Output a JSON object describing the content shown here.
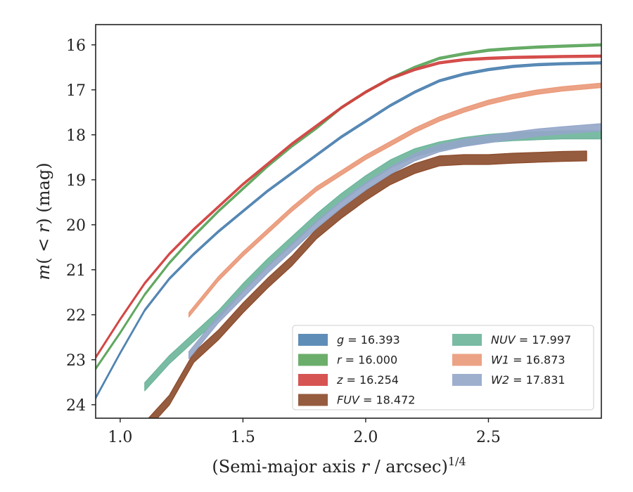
{
  "chart_data": {
    "type": "line",
    "title": "",
    "xlabel": "(Semi-major axis r / arcsec)^1/4",
    "ylabel": "m(< r) (mag)",
    "xlim": [
      0.9,
      2.96
    ],
    "ylim": [
      24.3,
      15.55
    ],
    "y_inverted": true,
    "grid": false,
    "legend_position": "lower-right",
    "xticks": [
      "1.0",
      "1.5",
      "2.0",
      "2.5"
    ],
    "yticks": [
      "16",
      "17",
      "18",
      "19",
      "20",
      "21",
      "22",
      "23",
      "24"
    ],
    "series": [
      {
        "name": "g = 16.393",
        "color": "#4c81b0",
        "band_width": 0.05,
        "x": [
          0.9,
          1.0,
          1.1,
          1.2,
          1.3,
          1.4,
          1.5,
          1.6,
          1.7,
          1.8,
          1.9,
          2.0,
          2.1,
          2.2,
          2.3,
          2.4,
          2.5,
          2.6,
          2.7,
          2.8,
          2.96
        ],
        "y": [
          23.85,
          22.85,
          21.9,
          21.2,
          20.65,
          20.15,
          19.7,
          19.25,
          18.85,
          18.45,
          18.05,
          17.7,
          17.35,
          17.05,
          16.8,
          16.65,
          16.55,
          16.48,
          16.44,
          16.42,
          16.4
        ]
      },
      {
        "name": "r = 16.000",
        "color": "#5ba55b",
        "band_width": 0.05,
        "x": [
          0.9,
          1.0,
          1.1,
          1.2,
          1.3,
          1.4,
          1.5,
          1.6,
          1.7,
          1.8,
          1.9,
          2.0,
          2.1,
          2.2,
          2.3,
          2.4,
          2.5,
          2.6,
          2.7,
          2.8,
          2.96
        ],
        "y": [
          23.2,
          22.4,
          21.55,
          20.85,
          20.25,
          19.7,
          19.2,
          18.7,
          18.25,
          17.85,
          17.4,
          17.05,
          16.75,
          16.5,
          16.3,
          16.2,
          16.12,
          16.08,
          16.05,
          16.03,
          16.0
        ]
      },
      {
        "name": "z = 16.254",
        "color": "#d1413f",
        "band_width": 0.05,
        "x": [
          0.9,
          1.0,
          1.1,
          1.2,
          1.3,
          1.4,
          1.5,
          1.6,
          1.7,
          1.8,
          1.9,
          2.0,
          2.1,
          2.2,
          2.3,
          2.4,
          2.5,
          2.6,
          2.7,
          2.8,
          2.96
        ],
        "y": [
          22.95,
          22.1,
          21.3,
          20.65,
          20.1,
          19.6,
          19.1,
          18.65,
          18.2,
          17.8,
          17.4,
          17.05,
          16.75,
          16.55,
          16.4,
          16.33,
          16.3,
          16.28,
          16.27,
          16.26,
          16.25
        ]
      },
      {
        "name": "FUV = 18.472",
        "color": "#8b4a2a",
        "band_width": 0.22,
        "x": [
          1.1,
          1.2,
          1.3,
          1.4,
          1.5,
          1.6,
          1.7,
          1.8,
          1.9,
          2.0,
          2.1,
          2.2,
          2.3,
          2.4,
          2.5,
          2.6,
          2.7,
          2.8,
          2.9
        ],
        "y": [
          24.5,
          23.9,
          22.95,
          22.45,
          21.85,
          21.3,
          20.8,
          20.2,
          19.75,
          19.35,
          19.0,
          18.75,
          18.58,
          18.55,
          18.55,
          18.52,
          18.5,
          18.48,
          18.47
        ]
      },
      {
        "name": "NUV = 17.997",
        "color": "#6cb49a",
        "band_width": 0.18,
        "x": [
          1.1,
          1.2,
          1.3,
          1.4,
          1.5,
          1.6,
          1.7,
          1.8,
          1.9,
          2.0,
          2.1,
          2.2,
          2.3,
          2.4,
          2.5,
          2.6,
          2.7,
          2.8,
          2.96
        ],
        "y": [
          23.6,
          23.0,
          22.5,
          22.0,
          21.4,
          20.85,
          20.35,
          19.85,
          19.4,
          19.0,
          18.65,
          18.4,
          18.25,
          18.15,
          18.08,
          18.04,
          18.02,
          18.0,
          18.0
        ]
      },
      {
        "name": "W1 = 16.873",
        "color": "#ea9878",
        "band_width": 0.1,
        "x": [
          1.28,
          1.4,
          1.5,
          1.6,
          1.7,
          1.8,
          1.9,
          2.0,
          2.1,
          2.2,
          2.3,
          2.4,
          2.5,
          2.6,
          2.7,
          2.8,
          2.96
        ],
        "y": [
          22.0,
          21.2,
          20.65,
          20.15,
          19.65,
          19.2,
          18.85,
          18.5,
          18.2,
          17.9,
          17.65,
          17.45,
          17.28,
          17.15,
          17.05,
          16.98,
          16.9
        ]
      },
      {
        "name": "W2 = 17.831",
        "color": "#94a6c9",
        "band_width": 0.16,
        "x": [
          1.28,
          1.4,
          1.5,
          1.6,
          1.7,
          1.8,
          1.9,
          2.0,
          2.1,
          2.2,
          2.3,
          2.4,
          2.5,
          2.6,
          2.7,
          2.8,
          2.96
        ],
        "y": [
          22.9,
          22.1,
          21.55,
          21.0,
          20.5,
          20.0,
          19.55,
          19.15,
          18.8,
          18.5,
          18.3,
          18.18,
          18.1,
          18.02,
          17.95,
          17.9,
          17.83
        ]
      }
    ],
    "legend": {
      "left_column": [
        {
          "symbol": "g",
          "value_text": "= 16.393",
          "color": "#4c81b0"
        },
        {
          "symbol": "r",
          "value_text": "= 16.000",
          "color": "#5ba55b"
        },
        {
          "symbol": "z",
          "value_text": "= 16.254",
          "color": "#d1413f"
        },
        {
          "symbol": "FUV",
          "value_text": "= 18.472",
          "color": "#8b4a2a"
        }
      ],
      "right_column": [
        {
          "symbol": "NUV",
          "value_text": "= 17.997",
          "color": "#6cb49a"
        },
        {
          "symbol": "W1",
          "value_text": "= 16.873",
          "color": "#ea9878"
        },
        {
          "symbol": "W2",
          "value_text": "= 17.831",
          "color": "#94a6c9"
        }
      ]
    }
  }
}
